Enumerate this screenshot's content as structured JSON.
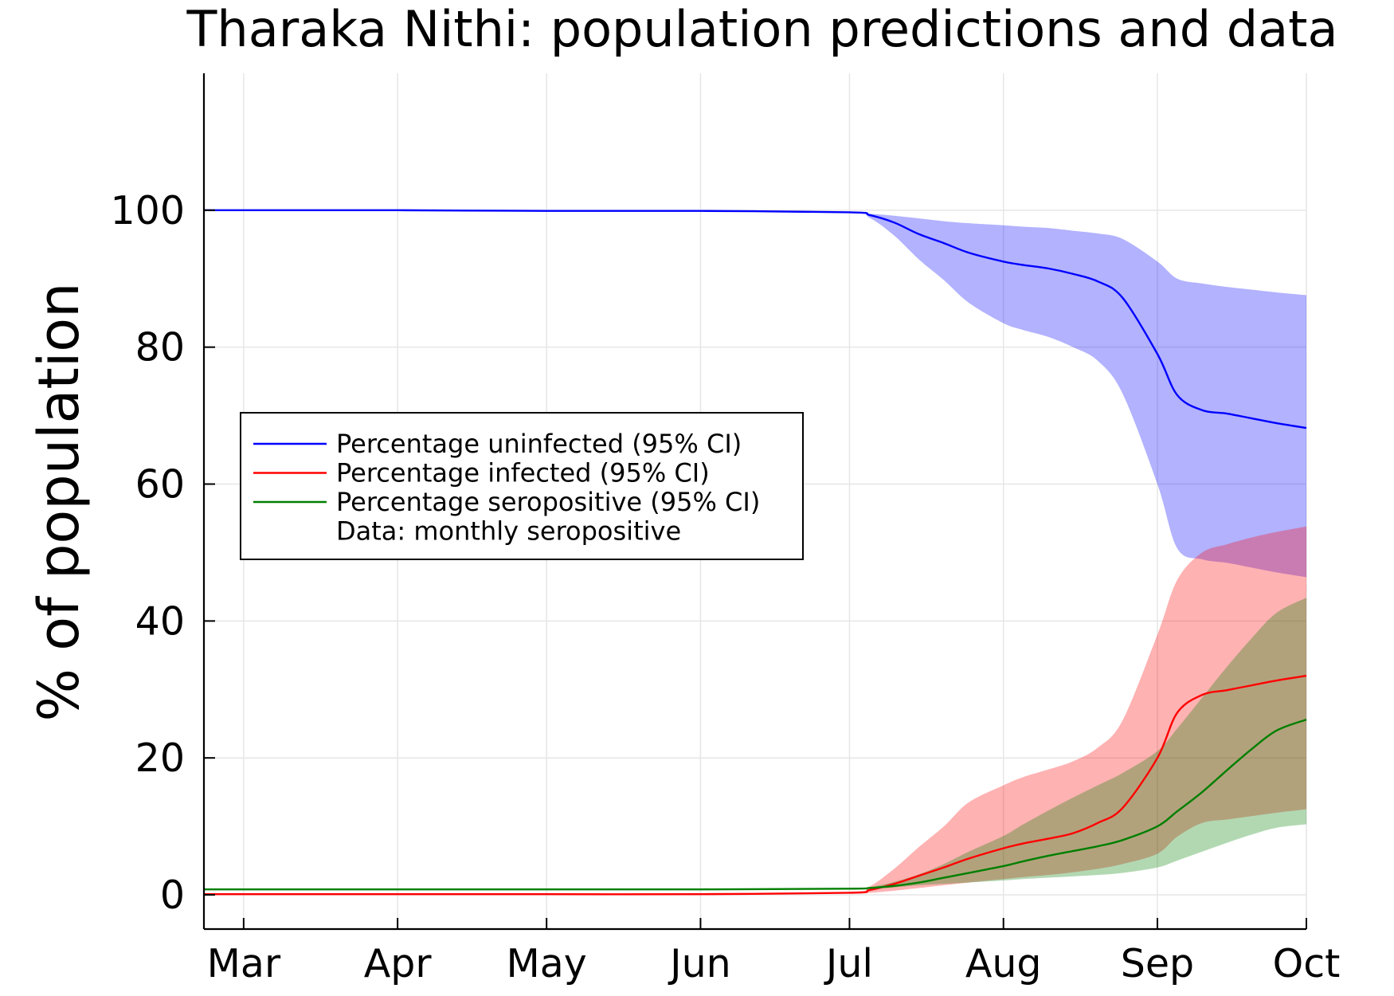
{
  "chart_data": {
    "type": "area",
    "title": "Tharaka Nithi: population predictions and data",
    "xlabel": "",
    "ylabel": "% of population",
    "x_ticks": [
      "Mar",
      "Apr",
      "May",
      "Jun",
      "Jul",
      "Aug",
      "Sep",
      "Oct"
    ],
    "y_ticks": [
      0,
      20,
      40,
      60,
      80,
      100
    ],
    "ylim": [
      -5,
      120
    ],
    "grid": true,
    "legend_position": "center-left",
    "x": [
      "2020-02-22",
      "2020-03-01",
      "2020-04-01",
      "2020-05-01",
      "2020-06-01",
      "2020-07-01",
      "2020-07-05",
      "2020-07-10",
      "2020-07-15",
      "2020-07-20",
      "2020-07-25",
      "2020-08-01",
      "2020-08-05",
      "2020-08-10",
      "2020-08-15",
      "2020-08-20",
      "2020-08-25",
      "2020-09-01",
      "2020-09-05",
      "2020-09-10",
      "2020-09-15",
      "2020-09-20",
      "2020-09-25",
      "2020-10-01"
    ],
    "series": [
      {
        "name": "Percentage uninfected (95% CI)",
        "color": "#0000ff",
        "band_color": "#b1b1fd",
        "values": [
          100,
          100,
          100,
          99.9,
          99.9,
          99.7,
          99.3,
          98.2,
          96.5,
          95.2,
          93.8,
          92.5,
          92.0,
          91.5,
          90.7,
          89.6,
          87.2,
          79.0,
          73.0,
          70.8,
          70.3,
          69.6,
          68.9,
          68.2
        ],
        "lower": [
          100,
          100,
          100,
          99.9,
          99.9,
          99.6,
          98.9,
          96.3,
          92.8,
          89.8,
          86.5,
          83.5,
          82.5,
          81.5,
          80.0,
          78.0,
          73.2,
          60.0,
          50.6,
          49.0,
          48.5,
          47.8,
          47.1,
          46.4
        ],
        "upper": [
          100,
          100,
          100,
          99.9,
          99.9,
          99.8,
          99.5,
          99.2,
          98.8,
          98.4,
          98.1,
          97.8,
          97.6,
          97.4,
          97.0,
          96.6,
          95.8,
          92.5,
          90.0,
          89.3,
          88.8,
          88.4,
          88.0,
          87.6
        ]
      },
      {
        "name": "Percentage infected (95% CI)",
        "color": "#ff0000",
        "band_color": "#fdb1b1",
        "values": [
          0.1,
          0.1,
          0.1,
          0.1,
          0.1,
          0.3,
          0.7,
          1.6,
          2.8,
          4.0,
          5.3,
          6.8,
          7.5,
          8.2,
          9.0,
          10.5,
          12.7,
          20.0,
          26.6,
          29.2,
          29.9,
          30.6,
          31.3,
          32.0
        ],
        "lower": [
          0.1,
          0.1,
          0.1,
          0.1,
          0.1,
          0.2,
          0.3,
          0.6,
          1.0,
          1.4,
          1.8,
          2.3,
          2.6,
          2.9,
          3.3,
          3.8,
          4.5,
          6.0,
          8.5,
          10.5,
          11.0,
          11.5,
          12.0,
          12.5
        ],
        "upper": [
          0.1,
          0.1,
          0.1,
          0.1,
          0.1,
          0.4,
          1.2,
          3.8,
          7.0,
          10.0,
          13.5,
          16.0,
          17.2,
          18.3,
          19.5,
          21.5,
          25.5,
          38.0,
          46.0,
          50.0,
          51.2,
          52.2,
          53.0,
          53.8
        ]
      },
      {
        "name": "Percentage seropositive (95% CI)",
        "color": "#007f00",
        "band_color": "#7fbf7f",
        "values": [
          0.8,
          0.8,
          0.8,
          0.8,
          0.8,
          0.9,
          1.0,
          1.3,
          1.8,
          2.5,
          3.2,
          4.2,
          4.9,
          5.7,
          6.4,
          7.1,
          8.0,
          10.0,
          12.2,
          15.0,
          18.2,
          21.3,
          24.0,
          25.6
        ],
        "lower": [
          0.8,
          0.8,
          0.8,
          0.8,
          0.8,
          0.8,
          0.9,
          1.1,
          1.4,
          1.6,
          1.8,
          2.1,
          2.3,
          2.5,
          2.7,
          2.9,
          3.2,
          4.0,
          5.0,
          6.3,
          7.6,
          8.8,
          9.8,
          10.3
        ],
        "upper": [
          0.8,
          0.8,
          0.8,
          0.8,
          0.8,
          0.9,
          1.1,
          1.9,
          3.0,
          4.5,
          6.3,
          8.6,
          10.3,
          12.3,
          14.2,
          16.0,
          17.8,
          21.0,
          24.3,
          28.8,
          33.3,
          37.5,
          41.2,
          43.4
        ]
      }
    ],
    "legend_entries": [
      {
        "label": "Percentage uninfected (95% CI)",
        "color": "#0000ff"
      },
      {
        "label": "Percentage infected (95% CI)",
        "color": "#ff0000"
      },
      {
        "label": "Percentage seropositive (95% CI)",
        "color": "#007f00"
      },
      {
        "label": "Data: monthly seropositive",
        "color": ""
      }
    ]
  }
}
